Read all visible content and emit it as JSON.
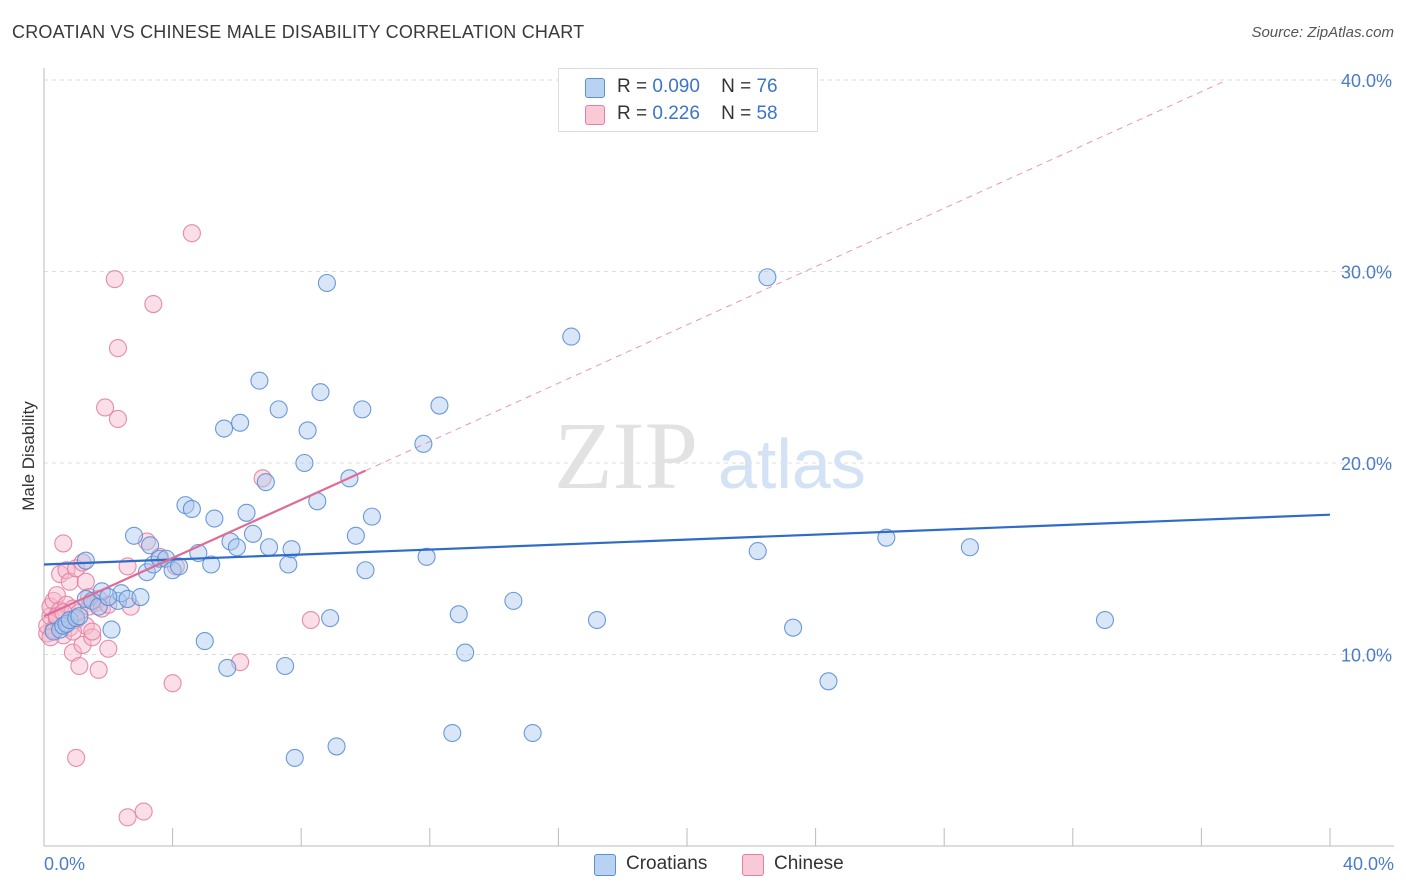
{
  "header": {
    "title": "CROATIAN VS CHINESE MALE DISABILITY CORRELATION CHART",
    "source": "Source: ZipAtlas.com"
  },
  "watermark": {
    "zip": "ZIP",
    "atlas": "atlas"
  },
  "legend": {
    "rows": [
      {
        "r_label": "R =",
        "r_value": "0.090",
        "n_label": "N =",
        "n_value": "76"
      },
      {
        "r_label": "R =",
        "r_value": "0.226",
        "n_label": "N =",
        "n_value": "58"
      }
    ]
  },
  "bottom_legend": {
    "croatians": "Croatians",
    "chinese": "Chinese"
  },
  "colors": {
    "blue_fill": "#a9c8ee",
    "blue_stroke": "#5b8fd6",
    "blue_line": "#2f6cc7",
    "pink_fill": "#f5b8cb",
    "pink_stroke": "#e57fa0",
    "pink_line": "#e06b95",
    "grid": "#dddddd",
    "tick_text": "#4a7cc9"
  },
  "chart_data": {
    "type": "scatter",
    "title": "CROATIAN VS CHINESE MALE DISABILITY CORRELATION CHART",
    "xlabel": "",
    "ylabel": "Male Disability",
    "xlim": [
      0,
      40
    ],
    "ylim": [
      0,
      40
    ],
    "x_tick_labels": [
      "0.0%",
      "40.0%"
    ],
    "y_ticks": [
      10,
      20,
      30,
      40
    ],
    "y_tick_labels": [
      "10.0%",
      "20.0%",
      "30.0%",
      "40.0%"
    ],
    "series": [
      {
        "name": "Croatians",
        "r": 0.09,
        "n": 76,
        "trend": {
          "x": [
            0,
            40
          ],
          "y": [
            14.7,
            17.3
          ]
        },
        "points": [
          [
            0.3,
            11.2
          ],
          [
            0.5,
            11.3
          ],
          [
            0.6,
            11.5
          ],
          [
            0.7,
            11.6
          ],
          [
            0.8,
            11.8
          ],
          [
            1.0,
            11.9
          ],
          [
            1.1,
            12.0
          ],
          [
            1.3,
            14.9
          ],
          [
            1.3,
            12.9
          ],
          [
            1.5,
            12.8
          ],
          [
            1.7,
            12.5
          ],
          [
            1.8,
            13.3
          ],
          [
            2.1,
            11.3
          ],
          [
            2.3,
            12.8
          ],
          [
            2.4,
            13.2
          ],
          [
            2.6,
            12.9
          ],
          [
            2.8,
            16.2
          ],
          [
            3.0,
            13.0
          ],
          [
            3.2,
            14.3
          ],
          [
            3.3,
            15.7
          ],
          [
            3.4,
            14.7
          ],
          [
            3.6,
            15.0
          ],
          [
            3.8,
            15.0
          ],
          [
            4.0,
            14.4
          ],
          [
            4.2,
            14.6
          ],
          [
            4.4,
            17.8
          ],
          [
            4.6,
            17.6
          ],
          [
            4.8,
            15.3
          ],
          [
            5.0,
            10.7
          ],
          [
            5.2,
            14.7
          ],
          [
            5.3,
            17.1
          ],
          [
            5.6,
            21.8
          ],
          [
            5.7,
            9.3
          ],
          [
            5.8,
            15.9
          ],
          [
            6.0,
            15.6
          ],
          [
            6.1,
            22.1
          ],
          [
            6.3,
            17.4
          ],
          [
            6.5,
            16.3
          ],
          [
            6.7,
            24.3
          ],
          [
            6.9,
            19.0
          ],
          [
            7.0,
            15.6
          ],
          [
            7.3,
            22.8
          ],
          [
            7.5,
            9.4
          ],
          [
            7.6,
            14.7
          ],
          [
            7.7,
            15.5
          ],
          [
            7.8,
            4.6
          ],
          [
            8.1,
            20.0
          ],
          [
            8.2,
            21.7
          ],
          [
            8.5,
            18.0
          ],
          [
            8.6,
            23.7
          ],
          [
            8.8,
            29.4
          ],
          [
            8.9,
            11.9
          ],
          [
            9.1,
            5.2
          ],
          [
            9.5,
            19.2
          ],
          [
            9.7,
            16.2
          ],
          [
            9.9,
            22.8
          ],
          [
            10.0,
            14.4
          ],
          [
            10.2,
            17.2
          ],
          [
            11.8,
            21.0
          ],
          [
            11.9,
            15.1
          ],
          [
            12.3,
            23.0
          ],
          [
            12.7,
            5.9
          ],
          [
            12.9,
            12.1
          ],
          [
            13.1,
            10.1
          ],
          [
            14.6,
            12.8
          ],
          [
            15.2,
            5.9
          ],
          [
            16.4,
            26.6
          ],
          [
            17.2,
            11.8
          ],
          [
            22.2,
            15.4
          ],
          [
            22.5,
            29.7
          ],
          [
            23.3,
            11.4
          ],
          [
            24.4,
            8.6
          ],
          [
            26.2,
            16.1
          ],
          [
            28.8,
            15.6
          ],
          [
            33.0,
            11.8
          ],
          [
            2.0,
            13.0
          ]
        ]
      },
      {
        "name": "Chinese",
        "r": 0.226,
        "n": 58,
        "trend": {
          "x": [
            0,
            10.0
          ],
          "y": [
            12.0,
            19.6
          ]
        },
        "trend_extended": {
          "x": [
            10.0,
            36.8
          ],
          "y": [
            19.6,
            40.0
          ]
        },
        "points": [
          [
            0.1,
            11.1
          ],
          [
            0.1,
            11.5
          ],
          [
            0.2,
            12.0
          ],
          [
            0.2,
            12.5
          ],
          [
            0.3,
            11.3
          ],
          [
            0.3,
            12.8
          ],
          [
            0.4,
            13.1
          ],
          [
            0.4,
            11.9
          ],
          [
            0.5,
            14.2
          ],
          [
            0.5,
            12.3
          ],
          [
            0.6,
            15.8
          ],
          [
            0.6,
            11.0
          ],
          [
            0.7,
            12.6
          ],
          [
            0.7,
            14.4
          ],
          [
            0.8,
            11.4
          ],
          [
            0.8,
            13.8
          ],
          [
            0.9,
            10.1
          ],
          [
            0.9,
            12.4
          ],
          [
            1.0,
            14.5
          ],
          [
            1.0,
            11.8
          ],
          [
            1.1,
            9.4
          ],
          [
            1.1,
            12.2
          ],
          [
            1.2,
            14.8
          ],
          [
            1.2,
            10.5
          ],
          [
            1.3,
            13.8
          ],
          [
            1.3,
            11.5
          ],
          [
            1.4,
            12.5
          ],
          [
            1.5,
            10.9
          ],
          [
            1.5,
            11.2
          ],
          [
            1.6,
            12.7
          ],
          [
            1.7,
            9.2
          ],
          [
            1.7,
            12.9
          ],
          [
            1.8,
            12.4
          ],
          [
            1.9,
            22.9
          ],
          [
            2.0,
            10.3
          ],
          [
            2.0,
            12.6
          ],
          [
            2.2,
            29.6
          ],
          [
            2.3,
            26.0
          ],
          [
            2.3,
            22.3
          ],
          [
            2.6,
            14.6
          ],
          [
            2.7,
            12.5
          ],
          [
            3.2,
            15.9
          ],
          [
            3.4,
            28.3
          ],
          [
            3.6,
            15.1
          ],
          [
            4.0,
            8.5
          ],
          [
            4.1,
            14.6
          ],
          [
            4.6,
            32.0
          ],
          [
            6.1,
            9.6
          ],
          [
            6.8,
            19.2
          ],
          [
            8.3,
            11.8
          ],
          [
            1.0,
            4.6
          ],
          [
            2.6,
            1.5
          ],
          [
            3.1,
            1.8
          ],
          [
            0.2,
            10.9
          ],
          [
            0.4,
            12.0
          ],
          [
            0.9,
            11.2
          ],
          [
            1.4,
            13.0
          ],
          [
            0.6,
            12.2
          ]
        ]
      }
    ]
  }
}
